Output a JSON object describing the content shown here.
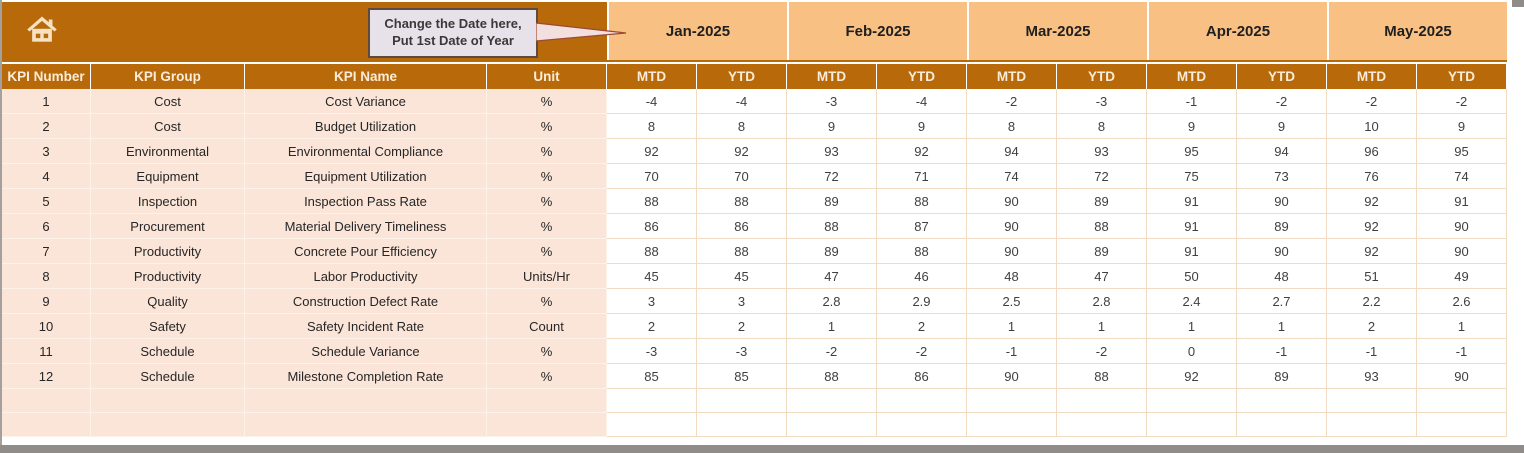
{
  "theme": {
    "dark_orange": "#B8690A",
    "light_orange": "#F9C083",
    "peach": "#FBE5D8",
    "grid_tan": "#F1DBC1",
    "callout_bg": "#E7E1E9",
    "header_text": "#FBEDDA"
  },
  "banner": {
    "callout_line1": "Change the Date here,",
    "callout_line2": "Put 1st Date of Year"
  },
  "columns": {
    "kpi_number": "KPI Number",
    "kpi_group": "KPI Group",
    "kpi_name": "KPI Name",
    "unit": "Unit",
    "mtd": "MTD",
    "ytd": "YTD"
  },
  "months": [
    "Jan-2025",
    "Feb-2025",
    "Mar-2025",
    "Apr-2025",
    "May-2025"
  ],
  "rows": [
    {
      "number": "1",
      "group": "Cost",
      "name": "Cost Variance",
      "unit": "%",
      "values": [
        "-4",
        "-4",
        "-3",
        "-4",
        "-2",
        "-3",
        "-1",
        "-2",
        "-2",
        "-2"
      ]
    },
    {
      "number": "2",
      "group": "Cost",
      "name": "Budget Utilization",
      "unit": "%",
      "values": [
        "8",
        "8",
        "9",
        "9",
        "8",
        "8",
        "9",
        "9",
        "10",
        "9"
      ]
    },
    {
      "number": "3",
      "group": "Environmental",
      "name": "Environmental Compliance",
      "unit": "%",
      "values": [
        "92",
        "92",
        "93",
        "92",
        "94",
        "93",
        "95",
        "94",
        "96",
        "95"
      ]
    },
    {
      "number": "4",
      "group": "Equipment",
      "name": "Equipment Utilization",
      "unit": "%",
      "values": [
        "70",
        "70",
        "72",
        "71",
        "74",
        "72",
        "75",
        "73",
        "76",
        "74"
      ]
    },
    {
      "number": "5",
      "group": "Inspection",
      "name": "Inspection Pass Rate",
      "unit": "%",
      "values": [
        "88",
        "88",
        "89",
        "88",
        "90",
        "89",
        "91",
        "90",
        "92",
        "91"
      ]
    },
    {
      "number": "6",
      "group": "Procurement",
      "name": "Material Delivery Timeliness",
      "unit": "%",
      "values": [
        "86",
        "86",
        "88",
        "87",
        "90",
        "88",
        "91",
        "89",
        "92",
        "90"
      ]
    },
    {
      "number": "7",
      "group": "Productivity",
      "name": "Concrete Pour Efficiency",
      "unit": "%",
      "values": [
        "88",
        "88",
        "89",
        "88",
        "90",
        "89",
        "91",
        "90",
        "92",
        "90"
      ]
    },
    {
      "number": "8",
      "group": "Productivity",
      "name": "Labor Productivity",
      "unit": "Units/Hr",
      "values": [
        "45",
        "45",
        "47",
        "46",
        "48",
        "47",
        "50",
        "48",
        "51",
        "49"
      ]
    },
    {
      "number": "9",
      "group": "Quality",
      "name": "Construction Defect Rate",
      "unit": "%",
      "values": [
        "3",
        "3",
        "2.8",
        "2.9",
        "2.5",
        "2.8",
        "2.4",
        "2.7",
        "2.2",
        "2.6"
      ]
    },
    {
      "number": "10",
      "group": "Safety",
      "name": "Safety Incident Rate",
      "unit": "Count",
      "values": [
        "2",
        "2",
        "1",
        "2",
        "1",
        "1",
        "1",
        "1",
        "2",
        "1"
      ]
    },
    {
      "number": "11",
      "group": "Schedule",
      "name": "Schedule Variance",
      "unit": "%",
      "values": [
        "-3",
        "-3",
        "-2",
        "-2",
        "-1",
        "-2",
        "0",
        "-1",
        "-1",
        "-1"
      ]
    },
    {
      "number": "12",
      "group": "Schedule",
      "name": "Milestone Completion Rate",
      "unit": "%",
      "values": [
        "85",
        "85",
        "88",
        "86",
        "90",
        "88",
        "92",
        "89",
        "93",
        "90"
      ]
    }
  ],
  "empty_row_count": 2
}
